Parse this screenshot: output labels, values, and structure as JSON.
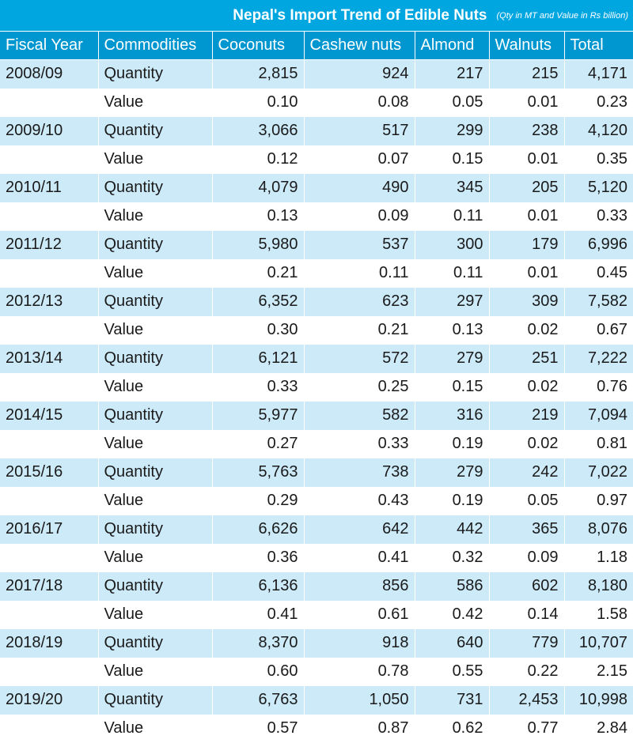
{
  "chart_data": {
    "type": "table",
    "title": "Nepal's Import Trend of Edible Nuts",
    "subtitle": "(Qty in MT and Value in Rs billion)",
    "columns": [
      "Fiscal Year",
      "Commodities",
      "Coconuts",
      "Cashew nuts",
      "Almond",
      "Walnuts",
      "Total"
    ],
    "rows": [
      {
        "year": "2008/09",
        "quantity": [
          "2,815",
          "924",
          "217",
          "215",
          "4,171"
        ],
        "value": [
          "0.10",
          "0.08",
          "0.05",
          "0.01",
          "0.23"
        ]
      },
      {
        "year": "2009/10",
        "quantity": [
          "3,066",
          "517",
          "299",
          "238",
          "4,120"
        ],
        "value": [
          "0.12",
          "0.07",
          "0.15",
          "0.01",
          "0.35"
        ]
      },
      {
        "year": "2010/11",
        "quantity": [
          "4,079",
          "490",
          "345",
          "205",
          "5,120"
        ],
        "value": [
          "0.13",
          "0.09",
          "0.11",
          "0.01",
          "0.33"
        ]
      },
      {
        "year": "2011/12",
        "quantity": [
          "5,980",
          "537",
          "300",
          "179",
          "6,996"
        ],
        "value": [
          "0.21",
          "0.11",
          "0.11",
          "0.01",
          "0.45"
        ]
      },
      {
        "year": "2012/13",
        "quantity": [
          "6,352",
          "623",
          "297",
          "309",
          "7,582"
        ],
        "value": [
          "0.30",
          "0.21",
          "0.13",
          "0.02",
          "0.67"
        ]
      },
      {
        "year": "2013/14",
        "quantity": [
          "6,121",
          "572",
          "279",
          "251",
          "7,222"
        ],
        "value": [
          "0.33",
          "0.25",
          "0.15",
          "0.02",
          "0.76"
        ]
      },
      {
        "year": "2014/15",
        "quantity": [
          "5,977",
          "582",
          "316",
          "219",
          "7,094"
        ],
        "value": [
          "0.27",
          "0.33",
          "0.19",
          "0.02",
          "0.81"
        ]
      },
      {
        "year": "2015/16",
        "quantity": [
          "5,763",
          "738",
          "279",
          "242",
          "7,022"
        ],
        "value": [
          "0.29",
          "0.43",
          "0.19",
          "0.05",
          "0.97"
        ]
      },
      {
        "year": "2016/17",
        "quantity": [
          "6,626",
          "642",
          "442",
          "365",
          "8,076"
        ],
        "value": [
          "0.36",
          "0.41",
          "0.32",
          "0.09",
          "1.18"
        ]
      },
      {
        "year": "2017/18",
        "quantity": [
          "6,136",
          "856",
          "586",
          "602",
          "8,180"
        ],
        "value": [
          "0.41",
          "0.61",
          "0.42",
          "0.14",
          "1.58"
        ]
      },
      {
        "year": "2018/19",
        "quantity": [
          "8,370",
          "918",
          "640",
          "779",
          "10,707"
        ],
        "value": [
          "0.60",
          "0.78",
          "0.55",
          "0.22",
          "2.15"
        ]
      },
      {
        "year": "2019/20",
        "quantity": [
          "6,763",
          "1,050",
          "731",
          "2,453",
          "10,998"
        ],
        "value": [
          "0.57",
          "0.87",
          "0.62",
          "0.77",
          "2.84"
        ]
      }
    ],
    "labels": {
      "quantity": "Quantity",
      "value": "Value"
    },
    "colors": {
      "title_bar": "#00a6e0",
      "header": "#0096cf",
      "quantity_row": "#cdeaf8",
      "value_row": "#ffffff"
    }
  }
}
